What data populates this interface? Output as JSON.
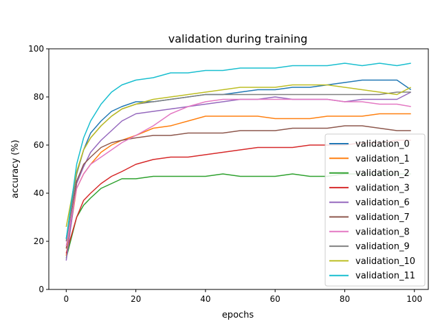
{
  "chart_data": {
    "type": "line",
    "title": "validation during training",
    "xlabel": "epochs",
    "ylabel": "accuracy (%)",
    "xlim": [
      -5,
      104
    ],
    "ylim": [
      0,
      100
    ],
    "xticks": [
      0,
      20,
      40,
      60,
      80,
      100
    ],
    "yticks": [
      0,
      20,
      40,
      60,
      80,
      100
    ],
    "grid": false,
    "legend_position": "lower-right",
    "series": [
      {
        "name": "validation_0",
        "color": "#1f77b4",
        "points": [
          [
            0,
            21
          ],
          [
            3,
            48
          ],
          [
            5,
            58
          ],
          [
            7,
            65
          ],
          [
            10,
            70
          ],
          [
            13,
            74
          ],
          [
            16,
            76
          ],
          [
            20,
            78
          ],
          [
            25,
            78
          ],
          [
            30,
            79
          ],
          [
            35,
            80
          ],
          [
            40,
            81
          ],
          [
            45,
            81
          ],
          [
            50,
            82
          ],
          [
            55,
            83
          ],
          [
            60,
            83
          ],
          [
            65,
            84
          ],
          [
            70,
            84
          ],
          [
            75,
            85
          ],
          [
            80,
            86
          ],
          [
            85,
            87
          ],
          [
            90,
            87
          ],
          [
            95,
            87
          ],
          [
            99,
            83
          ]
        ]
      },
      {
        "name": "validation_1",
        "color": "#ff7f0e",
        "points": [
          [
            0,
            14
          ],
          [
            3,
            42
          ],
          [
            5,
            48
          ],
          [
            7,
            52
          ],
          [
            10,
            57
          ],
          [
            13,
            60
          ],
          [
            16,
            62
          ],
          [
            20,
            64
          ],
          [
            25,
            67
          ],
          [
            30,
            68
          ],
          [
            35,
            70
          ],
          [
            40,
            72
          ],
          [
            45,
            72
          ],
          [
            50,
            72
          ],
          [
            55,
            72
          ],
          [
            60,
            71
          ],
          [
            65,
            71
          ],
          [
            70,
            71
          ],
          [
            75,
            72
          ],
          [
            80,
            72
          ],
          [
            85,
            72
          ],
          [
            90,
            73
          ],
          [
            95,
            73
          ],
          [
            99,
            73
          ]
        ]
      },
      {
        "name": "validation_2",
        "color": "#2ca02c",
        "points": [
          [
            0,
            13
          ],
          [
            3,
            30
          ],
          [
            5,
            35
          ],
          [
            7,
            38
          ],
          [
            10,
            42
          ],
          [
            13,
            44
          ],
          [
            16,
            46
          ],
          [
            20,
            46
          ],
          [
            25,
            47
          ],
          [
            30,
            47
          ],
          [
            35,
            47
          ],
          [
            40,
            47
          ],
          [
            45,
            48
          ],
          [
            50,
            47
          ],
          [
            55,
            47
          ],
          [
            60,
            47
          ],
          [
            65,
            48
          ],
          [
            70,
            47
          ],
          [
            75,
            47
          ],
          [
            80,
            48
          ],
          [
            85,
            48
          ],
          [
            90,
            48
          ],
          [
            95,
            48
          ],
          [
            99,
            48
          ]
        ]
      },
      {
        "name": "validation_3",
        "color": "#d62728",
        "points": [
          [
            0,
            15
          ],
          [
            3,
            30
          ],
          [
            5,
            37
          ],
          [
            7,
            40
          ],
          [
            10,
            44
          ],
          [
            13,
            47
          ],
          [
            16,
            49
          ],
          [
            20,
            52
          ],
          [
            25,
            54
          ],
          [
            30,
            55
          ],
          [
            35,
            55
          ],
          [
            40,
            56
          ],
          [
            45,
            57
          ],
          [
            50,
            58
          ],
          [
            55,
            59
          ],
          [
            60,
            59
          ],
          [
            65,
            59
          ],
          [
            70,
            60
          ],
          [
            75,
            60
          ],
          [
            80,
            60
          ],
          [
            85,
            61
          ],
          [
            90,
            61
          ],
          [
            95,
            62
          ],
          [
            99,
            62
          ]
        ]
      },
      {
        "name": "validation_6",
        "color": "#9467bd",
        "points": [
          [
            0,
            12
          ],
          [
            3,
            44
          ],
          [
            5,
            51
          ],
          [
            7,
            57
          ],
          [
            10,
            62
          ],
          [
            13,
            66
          ],
          [
            16,
            70
          ],
          [
            20,
            73
          ],
          [
            25,
            74
          ],
          [
            30,
            75
          ],
          [
            35,
            76
          ],
          [
            40,
            77
          ],
          [
            45,
            78
          ],
          [
            50,
            79
          ],
          [
            55,
            79
          ],
          [
            60,
            80
          ],
          [
            65,
            79
          ],
          [
            70,
            79
          ],
          [
            75,
            79
          ],
          [
            80,
            78
          ],
          [
            85,
            79
          ],
          [
            90,
            79
          ],
          [
            95,
            79
          ],
          [
            99,
            82
          ]
        ]
      },
      {
        "name": "validation_7",
        "color": "#8c564b",
        "points": [
          [
            0,
            17
          ],
          [
            3,
            45
          ],
          [
            5,
            52
          ],
          [
            7,
            55
          ],
          [
            10,
            59
          ],
          [
            13,
            61
          ],
          [
            16,
            62
          ],
          [
            20,
            63
          ],
          [
            25,
            64
          ],
          [
            30,
            64
          ],
          [
            35,
            65
          ],
          [
            40,
            65
          ],
          [
            45,
            65
          ],
          [
            50,
            66
          ],
          [
            55,
            66
          ],
          [
            60,
            66
          ],
          [
            65,
            67
          ],
          [
            70,
            67
          ],
          [
            75,
            67
          ],
          [
            80,
            68
          ],
          [
            85,
            68
          ],
          [
            90,
            67
          ],
          [
            95,
            66
          ],
          [
            99,
            66
          ]
        ]
      },
      {
        "name": "validation_8",
        "color": "#e377c2",
        "points": [
          [
            0,
            18
          ],
          [
            3,
            42
          ],
          [
            5,
            48
          ],
          [
            7,
            52
          ],
          [
            10,
            55
          ],
          [
            13,
            58
          ],
          [
            16,
            61
          ],
          [
            20,
            64
          ],
          [
            25,
            68
          ],
          [
            30,
            73
          ],
          [
            35,
            76
          ],
          [
            40,
            78
          ],
          [
            45,
            79
          ],
          [
            50,
            79
          ],
          [
            55,
            79
          ],
          [
            60,
            79
          ],
          [
            65,
            79
          ],
          [
            70,
            79
          ],
          [
            75,
            79
          ],
          [
            80,
            78
          ],
          [
            85,
            78
          ],
          [
            90,
            77
          ],
          [
            95,
            77
          ],
          [
            99,
            76
          ]
        ]
      },
      {
        "name": "validation_9",
        "color": "#7f7f7f",
        "points": [
          [
            0,
            20
          ],
          [
            3,
            48
          ],
          [
            5,
            58
          ],
          [
            7,
            63
          ],
          [
            10,
            68
          ],
          [
            13,
            72
          ],
          [
            16,
            75
          ],
          [
            20,
            77
          ],
          [
            25,
            78
          ],
          [
            30,
            79
          ],
          [
            35,
            80
          ],
          [
            40,
            81
          ],
          [
            45,
            81
          ],
          [
            50,
            81
          ],
          [
            55,
            81
          ],
          [
            60,
            81
          ],
          [
            65,
            81
          ],
          [
            70,
            81
          ],
          [
            75,
            81
          ],
          [
            80,
            81
          ],
          [
            85,
            81
          ],
          [
            90,
            81
          ],
          [
            95,
            82
          ],
          [
            99,
            82
          ]
        ]
      },
      {
        "name": "validation_10",
        "color": "#bcbd22",
        "points": [
          [
            0,
            26
          ],
          [
            3,
            49
          ],
          [
            5,
            58
          ],
          [
            7,
            63
          ],
          [
            10,
            68
          ],
          [
            13,
            72
          ],
          [
            16,
            75
          ],
          [
            20,
            77
          ],
          [
            25,
            79
          ],
          [
            30,
            80
          ],
          [
            35,
            81
          ],
          [
            40,
            82
          ],
          [
            45,
            83
          ],
          [
            50,
            84
          ],
          [
            55,
            84
          ],
          [
            60,
            84
          ],
          [
            65,
            85
          ],
          [
            70,
            85
          ],
          [
            75,
            85
          ],
          [
            80,
            84
          ],
          [
            85,
            83
          ],
          [
            90,
            82
          ],
          [
            95,
            81
          ],
          [
            99,
            84
          ]
        ]
      },
      {
        "name": "validation_11",
        "color": "#17becf",
        "points": [
          [
            0,
            21
          ],
          [
            3,
            52
          ],
          [
            5,
            63
          ],
          [
            7,
            70
          ],
          [
            10,
            77
          ],
          [
            13,
            82
          ],
          [
            16,
            85
          ],
          [
            20,
            87
          ],
          [
            25,
            88
          ],
          [
            30,
            90
          ],
          [
            35,
            90
          ],
          [
            40,
            91
          ],
          [
            45,
            91
          ],
          [
            50,
            92
          ],
          [
            55,
            92
          ],
          [
            60,
            92
          ],
          [
            65,
            93
          ],
          [
            70,
            93
          ],
          [
            75,
            93
          ],
          [
            80,
            94
          ],
          [
            85,
            93
          ],
          [
            90,
            94
          ],
          [
            95,
            93
          ],
          [
            99,
            94
          ]
        ]
      }
    ]
  }
}
